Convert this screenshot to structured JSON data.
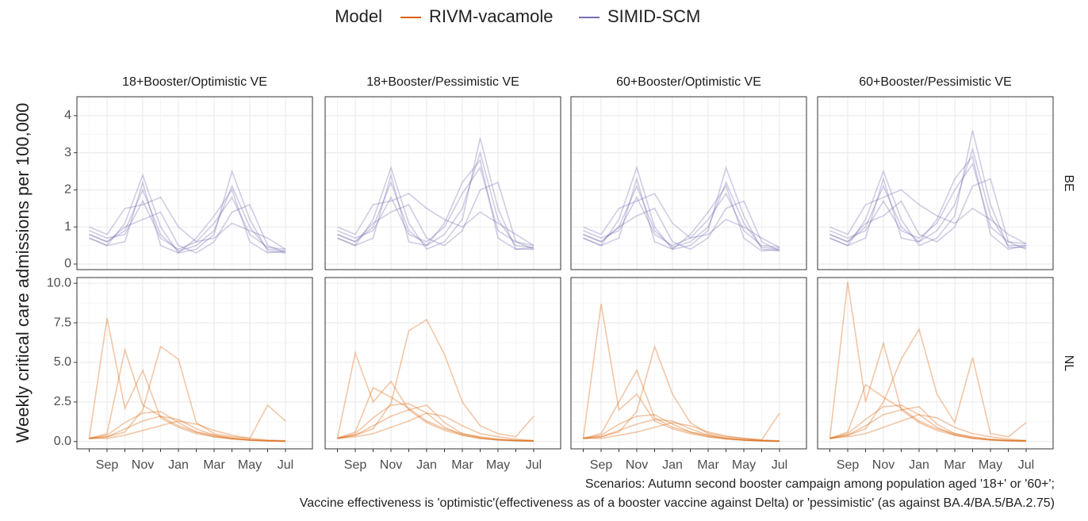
{
  "legend": {
    "title": "Model",
    "entries": [
      {
        "name": "RIVM-vacamole",
        "color": "#d95f02"
      },
      {
        "name": "SIMID-SCM",
        "color": "#7570b3"
      }
    ]
  },
  "y_label": "Weekly critical care admissions per 100,000",
  "facet_columns": [
    "18+Booster/Optimistic VE",
    "18+Booster/Pessimistic VE",
    "60+Booster/Optimistic VE",
    "60+Booster/Pessimistic VE"
  ],
  "x_categories": [
    null,
    "Sep",
    null,
    "Nov",
    null,
    "Jan",
    null,
    "Mar",
    null,
    "May",
    null,
    "Jul"
  ],
  "caption": [
    "Scenarios: Autumn second booster campaign among population aged '18+' or '60+';",
    "Vaccine effectiveness is 'optimistic'(effectiveness as of a booster vaccine against Delta) or 'pessimistic' (as against BA.4/BA.5/BA.2.75)"
  ],
  "chart_data": [
    {
      "type": "line",
      "row_label": "BE",
      "color": "#7570b3",
      "grid": true,
      "ylim": [
        -0.15,
        4.51
      ],
      "yticks": [
        0,
        1,
        2,
        3,
        4
      ],
      "panels": [
        {
          "series": [
            {
              "values": [
                0.8,
                0.6,
                0.9,
                2.0,
                0.8,
                0.35,
                0.5,
                0.9,
                2.1,
                1.0,
                0.4,
                0.35
              ]
            },
            {
              "values": [
                0.7,
                0.5,
                1.1,
                2.4,
                1.0,
                0.3,
                0.4,
                0.8,
                2.5,
                1.2,
                0.35,
                0.3
              ]
            },
            {
              "values": [
                0.9,
                0.7,
                0.8,
                1.7,
                0.7,
                0.4,
                0.6,
                1.1,
                1.8,
                0.8,
                0.45,
                0.4
              ]
            },
            {
              "values": [
                0.8,
                0.6,
                1.0,
                1.2,
                1.4,
                0.5,
                0.3,
                0.6,
                1.4,
                1.6,
                0.5,
                0.3
              ]
            },
            {
              "values": [
                0.7,
                0.5,
                0.6,
                2.2,
                0.5,
                0.3,
                0.7,
                1.3,
                2.0,
                0.6,
                0.3,
                0.35
              ]
            },
            {
              "values": [
                1.0,
                0.8,
                1.5,
                1.6,
                1.8,
                1.0,
                0.6,
                0.7,
                1.1,
                0.9,
                0.7,
                0.4
              ]
            }
          ]
        },
        {
          "series": [
            {
              "values": [
                0.8,
                0.6,
                1.0,
                2.2,
                0.9,
                0.5,
                0.8,
                1.5,
                3.0,
                1.2,
                0.5,
                0.45
              ]
            },
            {
              "values": [
                0.7,
                0.5,
                1.2,
                2.6,
                1.1,
                0.4,
                0.6,
                1.2,
                3.4,
                1.5,
                0.4,
                0.4
              ]
            },
            {
              "values": [
                0.9,
                0.7,
                0.9,
                1.8,
                0.8,
                0.6,
                1.0,
                1.9,
                2.6,
                0.9,
                0.6,
                0.5
              ]
            },
            {
              "values": [
                0.8,
                0.6,
                1.1,
                1.4,
                1.6,
                0.7,
                0.5,
                0.9,
                2.0,
                2.2,
                0.6,
                0.4
              ]
            },
            {
              "values": [
                0.7,
                0.5,
                0.7,
                2.4,
                0.6,
                0.5,
                1.1,
                2.2,
                2.8,
                0.7,
                0.4,
                0.45
              ]
            },
            {
              "values": [
                1.0,
                0.8,
                1.6,
                1.7,
                1.9,
                1.5,
                1.2,
                1.0,
                1.4,
                1.1,
                0.8,
                0.5
              ]
            }
          ]
        },
        {
          "series": [
            {
              "values": [
                0.8,
                0.6,
                1.0,
                2.1,
                0.9,
                0.45,
                0.6,
                1.0,
                2.2,
                1.1,
                0.45,
                0.4
              ]
            },
            {
              "values": [
                0.7,
                0.5,
                1.2,
                2.6,
                1.0,
                0.4,
                0.5,
                0.9,
                2.6,
                1.3,
                0.4,
                0.35
              ]
            },
            {
              "values": [
                0.9,
                0.7,
                0.9,
                1.8,
                0.8,
                0.5,
                0.7,
                1.2,
                1.9,
                0.9,
                0.5,
                0.45
              ]
            },
            {
              "values": [
                0.8,
                0.6,
                1.0,
                1.3,
                1.5,
                0.6,
                0.4,
                0.7,
                1.5,
                1.7,
                0.6,
                0.35
              ]
            },
            {
              "values": [
                0.7,
                0.5,
                0.7,
                2.3,
                0.6,
                0.4,
                0.8,
                1.4,
                2.1,
                0.7,
                0.35,
                0.4
              ]
            },
            {
              "values": [
                1.0,
                0.8,
                1.5,
                1.7,
                1.9,
                1.1,
                0.7,
                0.8,
                1.2,
                1.0,
                0.7,
                0.45
              ]
            }
          ]
        },
        {
          "series": [
            {
              "values": [
                0.8,
                0.6,
                1.0,
                2.1,
                1.0,
                0.6,
                0.9,
                1.6,
                3.1,
                1.3,
                0.5,
                0.5
              ]
            },
            {
              "values": [
                0.7,
                0.5,
                1.2,
                2.5,
                1.2,
                0.5,
                0.7,
                1.3,
                3.6,
                1.6,
                0.45,
                0.45
              ]
            },
            {
              "values": [
                0.9,
                0.7,
                0.9,
                1.7,
                0.9,
                0.7,
                1.1,
                2.0,
                2.7,
                1.0,
                0.6,
                0.55
              ]
            },
            {
              "values": [
                0.8,
                0.6,
                1.1,
                1.3,
                1.7,
                0.8,
                0.6,
                1.0,
                2.1,
                2.3,
                0.6,
                0.4
              ]
            },
            {
              "values": [
                0.7,
                0.5,
                0.7,
                2.3,
                0.7,
                0.6,
                1.2,
                2.3,
                2.9,
                0.8,
                0.4,
                0.5
              ]
            },
            {
              "values": [
                1.0,
                0.8,
                1.6,
                1.8,
                2.0,
                1.6,
                1.3,
                1.1,
                1.5,
                1.2,
                0.8,
                0.55
              ]
            }
          ]
        }
      ]
    },
    {
      "type": "line",
      "row_label": "NL",
      "color": "#d95f02",
      "grid": true,
      "ylim": [
        -0.46,
        10.36
      ],
      "yticks": [
        {
          "value": 0,
          "label": "0.0"
        },
        2.5,
        {
          "value": 5,
          "label": "5.0"
        },
        7.5,
        {
          "value": 10,
          "label": "10.0"
        }
      ],
      "panels": [
        {
          "series": [
            {
              "values": [
                0.2,
                0.3,
                0.8,
                1.3,
                1.6,
                1.4,
                0.8,
                0.4,
                0.2,
                0.1,
                0.05,
                0.02
              ]
            },
            {
              "values": [
                0.2,
                0.4,
                1.2,
                1.8,
                1.9,
                1.2,
                0.6,
                0.3,
                0.15,
                0.08,
                0.04,
                0.02
              ]
            },
            {
              "values": [
                0.2,
                0.2,
                0.4,
                0.7,
                1.0,
                1.3,
                1.1,
                0.7,
                0.4,
                0.2,
                0.1,
                0.05
              ]
            },
            {
              "values": [
                0.2,
                7.8,
                2.1,
                4.5,
                1.5,
                0.9,
                0.5,
                0.3,
                0.2,
                0.1,
                0.05,
                0.02
              ]
            },
            {
              "values": [
                0.2,
                0.3,
                0.6,
                2.0,
                6.0,
                5.2,
                1.2,
                0.5,
                0.3,
                0.2,
                2.3,
                1.3
              ]
            },
            {
              "values": [
                0.2,
                0.5,
                5.8,
                2.3,
                1.6,
                1.0,
                0.6,
                0.4,
                0.2,
                0.1,
                0.05,
                0.03
              ]
            }
          ]
        },
        {
          "series": [
            {
              "values": [
                0.2,
                0.4,
                1.0,
                1.6,
                2.0,
                2.3,
                1.2,
                0.5,
                0.25,
                0.12,
                0.06,
                0.03
              ]
            },
            {
              "values": [
                0.2,
                0.5,
                1.5,
                2.3,
                2.4,
                1.8,
                0.9,
                0.4,
                0.2,
                0.1,
                0.05,
                0.03
              ]
            },
            {
              "values": [
                0.2,
                0.3,
                0.5,
                0.9,
                1.3,
                1.8,
                1.6,
                1.0,
                0.5,
                0.3,
                0.15,
                0.07
              ]
            },
            {
              "values": [
                0.2,
                5.6,
                2.5,
                3.8,
                2.0,
                1.2,
                0.7,
                0.4,
                0.2,
                0.1,
                0.05,
                0.03
              ]
            },
            {
              "values": [
                0.2,
                0.4,
                0.8,
                2.4,
                7.0,
                7.7,
                5.5,
                2.5,
                1.0,
                0.5,
                0.3,
                1.6
              ]
            },
            {
              "values": [
                0.2,
                0.6,
                3.4,
                2.8,
                2.1,
                1.3,
                0.8,
                0.5,
                0.3,
                0.15,
                0.08,
                0.04
              ]
            }
          ]
        },
        {
          "series": [
            {
              "values": [
                0.2,
                0.3,
                0.7,
                1.1,
                1.4,
                1.3,
                0.8,
                0.4,
                0.2,
                0.1,
                0.05,
                0.02
              ]
            },
            {
              "values": [
                0.2,
                0.4,
                1.1,
                1.6,
                1.7,
                1.1,
                0.6,
                0.3,
                0.15,
                0.08,
                0.04,
                0.02
              ]
            },
            {
              "values": [
                0.2,
                0.2,
                0.4,
                0.6,
                0.9,
                1.2,
                1.0,
                0.6,
                0.35,
                0.2,
                0.1,
                0.05
              ]
            },
            {
              "values": [
                0.2,
                8.7,
                2.0,
                3.0,
                1.3,
                0.8,
                0.5,
                0.3,
                0.2,
                0.1,
                0.05,
                0.02
              ]
            },
            {
              "values": [
                0.2,
                0.3,
                0.6,
                1.9,
                6.0,
                3.0,
                1.2,
                0.5,
                0.3,
                0.2,
                0.1,
                1.8
              ]
            },
            {
              "values": [
                0.2,
                0.5,
                2.5,
                4.5,
                1.5,
                0.9,
                0.6,
                0.4,
                0.2,
                0.1,
                0.05,
                0.03
              ]
            }
          ]
        },
        {
          "series": [
            {
              "values": [
                0.2,
                0.4,
                1.0,
                1.7,
                2.0,
                2.2,
                1.1,
                0.5,
                0.25,
                0.12,
                0.06,
                0.03
              ]
            },
            {
              "values": [
                0.2,
                0.5,
                1.4,
                2.2,
                2.3,
                1.7,
                0.9,
                0.4,
                0.2,
                0.1,
                0.05,
                0.03
              ]
            },
            {
              "values": [
                0.2,
                0.3,
                0.5,
                0.9,
                1.3,
                1.7,
                1.5,
                0.9,
                0.5,
                0.3,
                0.15,
                0.07
              ]
            },
            {
              "values": [
                0.2,
                10.1,
                2.5,
                6.2,
                2.0,
                1.2,
                0.7,
                0.4,
                0.2,
                0.1,
                0.05,
                0.03
              ]
            },
            {
              "values": [
                0.2,
                0.4,
                0.8,
                2.5,
                5.2,
                7.1,
                3.0,
                1.2,
                5.3,
                0.5,
                0.3,
                1.2
              ]
            },
            {
              "values": [
                0.2,
                0.6,
                3.6,
                2.8,
                2.1,
                1.3,
                0.8,
                0.5,
                0.3,
                0.15,
                0.08,
                0.04
              ]
            }
          ]
        }
      ]
    }
  ]
}
